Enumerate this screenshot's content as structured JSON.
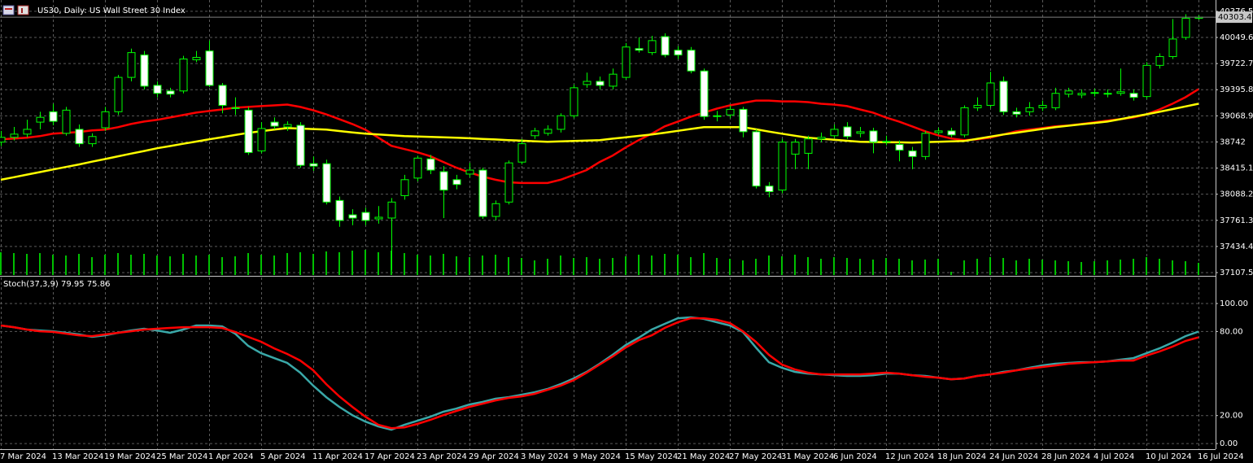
{
  "chart_data": [
    {
      "type": "candlestick",
      "title": "US30, Daily:  US Wall Street 30 Index",
      "categories": [
        "7 Mar 2024",
        null,
        null,
        null,
        "13 Mar 2024",
        null,
        null,
        null,
        "19 Mar 2024",
        null,
        null,
        null,
        "25 Mar 2024",
        null,
        null,
        null,
        "1 Apr 2024",
        null,
        null,
        null,
        "5 Apr 2024",
        null,
        null,
        null,
        "11 Apr 2024",
        null,
        null,
        null,
        "17 Apr 2024",
        null,
        null,
        null,
        "23 Apr 2024",
        null,
        null,
        null,
        "29 Apr 2024",
        null,
        null,
        null,
        "3 May 2024",
        null,
        null,
        null,
        "9 May 2024",
        null,
        null,
        null,
        "15 May 2024",
        null,
        null,
        null,
        "21 May 2024",
        null,
        null,
        null,
        "27 May 2024",
        null,
        null,
        null,
        "31 May 2024",
        null,
        null,
        null,
        "6 Jun 2024",
        null,
        null,
        null,
        "12 Jun 2024",
        null,
        null,
        null,
        "18 Jun 2024",
        null,
        null,
        null,
        "24 Jun 2024",
        null,
        null,
        null,
        "28 Jun 2024",
        null,
        null,
        null,
        "4 Jul 2024",
        null,
        null,
        null,
        "10 Jul 2024",
        null,
        null,
        null,
        "16 Jul 2024"
      ],
      "open": [
        38740,
        38800,
        38840,
        38990,
        39120,
        38850,
        38900,
        38720,
        38920,
        39120,
        39550,
        39830,
        39450,
        39380,
        39380,
        39770,
        39880,
        39450,
        39170,
        39140,
        38630,
        38990,
        38930,
        38950,
        38470,
        38470,
        38010,
        37830,
        37860,
        37780,
        37790,
        38070,
        38290,
        38530,
        38370,
        38270,
        38340,
        38390,
        37810,
        37990,
        38490,
        38820,
        38850,
        38900,
        39070,
        39460,
        39500,
        39440,
        39550,
        39910,
        39860,
        40060,
        39890,
        39890,
        39630,
        39070,
        39080,
        39150,
        38870,
        38190,
        38140,
        38590,
        38600,
        38780,
        38820,
        38930,
        38850,
        38880,
        38740,
        38710,
        38630,
        38560,
        38860,
        38880,
        38830,
        39170,
        39200,
        39500,
        39120,
        39120,
        39170,
        39170,
        39340,
        39330,
        39350,
        39350,
        39350,
        39350,
        39310,
        39700,
        39810,
        40050,
        40290
      ],
      "high": [
        38880,
        38930,
        39020,
        39120,
        39220,
        39180,
        38960,
        38850,
        39180,
        39580,
        39910,
        39880,
        39500,
        39420,
        39820,
        39880,
        40010,
        39480,
        39300,
        39180,
        38990,
        39050,
        39000,
        38990,
        38560,
        38520,
        38060,
        37900,
        37920,
        37940,
        38040,
        38330,
        38570,
        38580,
        38440,
        38330,
        38480,
        38420,
        38010,
        38510,
        38780,
        38920,
        38950,
        39100,
        39460,
        39610,
        39560,
        39660,
        39980,
        40050,
        40070,
        40100,
        39940,
        39930,
        39660,
        39130,
        39200,
        39180,
        38900,
        38240,
        38780,
        38780,
        38820,
        38860,
        38960,
        38990,
        38930,
        38920,
        38820,
        38760,
        38680,
        38880,
        38920,
        38920,
        39200,
        39300,
        39620,
        39560,
        39170,
        39240,
        39260,
        39420,
        39420,
        39400,
        39410,
        39400,
        39660,
        39400,
        39740,
        39850,
        40280,
        40340,
        40330
      ],
      "low": [
        38690,
        38760,
        38800,
        38900,
        38950,
        38820,
        38680,
        38680,
        38880,
        39080,
        39500,
        39400,
        39300,
        39300,
        39350,
        39740,
        39430,
        39100,
        39080,
        38580,
        38600,
        38900,
        38880,
        38420,
        38380,
        37960,
        37680,
        37700,
        37700,
        37720,
        37140,
        38020,
        38250,
        38340,
        37790,
        38150,
        38300,
        37780,
        37760,
        37960,
        38460,
        38780,
        38820,
        38860,
        39040,
        39420,
        39400,
        39400,
        39520,
        39860,
        39830,
        39800,
        39780,
        39600,
        39020,
        39000,
        39040,
        38800,
        38160,
        38050,
        38100,
        38400,
        38400,
        38740,
        38790,
        38780,
        38800,
        38600,
        38700,
        38500,
        38400,
        38520,
        38830,
        38800,
        38800,
        39130,
        39170,
        39080,
        39050,
        39070,
        39130,
        39140,
        39300,
        39290,
        39310,
        39300,
        39320,
        39260,
        39280,
        39660,
        39780,
        40020,
        40270
      ],
      "close": [
        38800,
        38840,
        38900,
        39050,
        39000,
        39140,
        38720,
        38810,
        39120,
        39550,
        39860,
        39440,
        39350,
        39340,
        39780,
        39800,
        39450,
        39200,
        39160,
        38610,
        38910,
        38940,
        38960,
        38450,
        38440,
        37990,
        37760,
        37790,
        37760,
        37800,
        37990,
        38270,
        38540,
        38390,
        38140,
        38210,
        38390,
        37810,
        37970,
        38480,
        38720,
        38880,
        38900,
        39070,
        39420,
        39500,
        39450,
        39590,
        39930,
        39890,
        40010,
        39830,
        39830,
        39630,
        39060,
        39070,
        39150,
        38870,
        38190,
        38120,
        38740,
        38740,
        38780,
        38800,
        38900,
        38810,
        38870,
        38740,
        38750,
        38640,
        38560,
        38850,
        38880,
        38830,
        39170,
        39200,
        39480,
        39120,
        39090,
        39170,
        39200,
        39350,
        39380,
        39350,
        39360,
        39340,
        39370,
        39300,
        39700,
        39810,
        40030,
        40290,
        40303.4
      ],
      "volume": [
        28,
        27,
        26,
        27,
        25,
        24,
        26,
        22,
        25,
        27,
        25,
        26,
        24,
        23,
        26,
        24,
        25,
        22,
        23,
        27,
        25,
        24,
        27,
        28,
        26,
        29,
        28,
        30,
        31,
        28,
        30,
        27,
        25,
        24,
        26,
        23,
        22,
        24,
        25,
        22,
        21,
        18,
        20,
        24,
        21,
        22,
        20,
        21,
        23,
        25,
        24,
        26,
        25,
        22,
        27,
        21,
        20,
        18,
        20,
        24,
        23,
        25,
        22,
        20,
        22,
        21,
        20,
        19,
        21,
        20,
        18,
        19,
        20,
        4,
        18,
        20,
        22,
        21,
        18,
        20,
        19,
        18,
        17,
        16,
        17,
        18,
        19,
        20,
        22,
        20,
        18,
        17,
        15
      ],
      "series": [
        {
          "color": "#ff0000",
          "values": [
            38775,
            38785,
            38795,
            38815,
            38845,
            38856,
            38866,
            38886,
            38896,
            38927,
            38967,
            38997,
            39018,
            39048,
            39078,
            39109,
            39129,
            39149,
            39170,
            39180,
            39190,
            39200,
            39210,
            39180,
            39139,
            39088,
            39028,
            38967,
            38896,
            38795,
            38694,
            38653,
            38613,
            38562,
            38491,
            38420,
            38360,
            38309,
            38269,
            38238,
            38228,
            38228,
            38228,
            38269,
            38329,
            38390,
            38491,
            38572,
            38673,
            38765,
            38845,
            38937,
            38997,
            39058,
            39109,
            39159,
            39200,
            39230,
            39260,
            39260,
            39250,
            39250,
            39240,
            39220,
            39210,
            39190,
            39149,
            39109,
            39048,
            38997,
            38937,
            38876,
            38825,
            38785,
            38765,
            38775,
            38795,
            38835,
            38876,
            38896,
            38916,
            38937,
            38947,
            38967,
            38987,
            39008,
            39028,
            39048,
            39088,
            39149,
            39220,
            39301,
            39402
          ]
        },
        {
          "color": "#ffff00",
          "values": [
            38269,
            38301,
            38333,
            38365,
            38397,
            38429,
            38461,
            38495,
            38528,
            38562,
            38596,
            38629,
            38663,
            38691,
            38719,
            38747,
            38775,
            38802,
            38829,
            38856,
            38876,
            38896,
            38916,
            38909,
            38903,
            38896,
            38879,
            38862,
            38845,
            38835,
            38825,
            38815,
            38810,
            38805,
            38800,
            38795,
            38788,
            38780,
            38773,
            38765,
            38758,
            38751,
            38744,
            38749,
            38754,
            38760,
            38765,
            38783,
            38800,
            38818,
            38835,
            38858,
            38881,
            38904,
            38927,
            38927,
            38927,
            38927,
            38900,
            38872,
            38845,
            38820,
            38795,
            38782,
            38770,
            38757,
            38744,
            38742,
            38739,
            38737,
            38734,
            38739,
            38744,
            38749,
            38754,
            38781,
            38808,
            38835,
            38858,
            38881,
            38904,
            38927,
            38945,
            38962,
            38980,
            38997,
            39027,
            39058,
            39088,
            39119,
            39153,
            39186,
            39220
          ]
        }
      ],
      "up_color": "#000000",
      "down_color": "#ffffff",
      "wick_color": "#00ff00",
      "volume_color": "#00c000",
      "ylim": [
        37077,
        40518
      ],
      "yticks": [
        40376.5,
        40049.6,
        39722.7,
        39395.8,
        39068.9,
        38742.0,
        38415.1,
        38088.2,
        37761.3,
        37434.4,
        37107.5
      ],
      "grid": true
    },
    {
      "type": "line",
      "title": "Stoch(37,3,9) 79.95 75.86",
      "series": [
        {
          "color": "#3aa8a8",
          "values": [
            84.3,
            83.1,
            81.4,
            80.8,
            80.2,
            79.1,
            77.9,
            76.2,
            77.3,
            79.1,
            80.8,
            82.0,
            80.8,
            79.1,
            81.4,
            84.3,
            84.3,
            83.7,
            78.5,
            69.8,
            64.5,
            61.0,
            57.6,
            50.6,
            41.3,
            33.1,
            26.2,
            20.3,
            15.7,
            12.2,
            9.9,
            13.4,
            16.3,
            19.2,
            22.7,
            25.0,
            27.9,
            29.7,
            32.0,
            33.1,
            34.9,
            36.6,
            39.0,
            42.4,
            46.5,
            51.2,
            57.0,
            63.4,
            70.3,
            75.6,
            81.4,
            85.5,
            89.5,
            90.1,
            89.0,
            86.6,
            84.3,
            79.7,
            68.6,
            58.1,
            54.1,
            51.2,
            50.0,
            49.4,
            48.8,
            48.3,
            48.3,
            48.8,
            50.0,
            50.0,
            48.8,
            48.3,
            47.1,
            45.9,
            46.5,
            48.3,
            49.4,
            51.2,
            52.3,
            54.1,
            55.8,
            57.0,
            57.6,
            58.1,
            58.1,
            58.7,
            59.9,
            61.0,
            64.5,
            68.0,
            72.1,
            76.7,
            79.95
          ]
        },
        {
          "color": "#ff0000",
          "values": [
            84.3,
            83.1,
            81.4,
            80.2,
            79.7,
            78.5,
            77.3,
            76.7,
            77.9,
            79.1,
            80.2,
            81.4,
            82.0,
            82.6,
            83.1,
            83.1,
            83.1,
            82.6,
            79.7,
            76.2,
            72.7,
            68.0,
            64.0,
            59.3,
            52.3,
            42.4,
            33.7,
            26.2,
            19.2,
            13.4,
            11.0,
            11.6,
            14.0,
            16.9,
            20.3,
            23.3,
            26.2,
            28.5,
            30.8,
            32.6,
            33.7,
            35.5,
            38.4,
            41.3,
            45.3,
            50.6,
            56.4,
            62.2,
            68.6,
            73.8,
            77.3,
            82.6,
            86.6,
            89.5,
            89.5,
            88.4,
            86.0,
            80.2,
            72.7,
            63.4,
            56.4,
            52.9,
            50.6,
            49.4,
            49.4,
            49.4,
            49.4,
            50.0,
            50.6,
            50.0,
            48.8,
            47.7,
            47.1,
            45.9,
            46.5,
            48.3,
            49.4,
            50.6,
            52.3,
            53.5,
            54.7,
            55.8,
            57.0,
            57.6,
            58.1,
            58.7,
            59.3,
            59.3,
            62.8,
            65.7,
            69.2,
            73.3,
            75.86
          ]
        }
      ],
      "ylim": [
        -4,
        118.6
      ],
      "yticks": [
        {
          "value": 100,
          "label": "100.00"
        },
        {
          "value": 80,
          "label": "80.00"
        },
        {
          "value": 20,
          "label": "20.00"
        },
        {
          "value": 0,
          "label": "0.00"
        }
      ],
      "grid": true
    }
  ]
}
